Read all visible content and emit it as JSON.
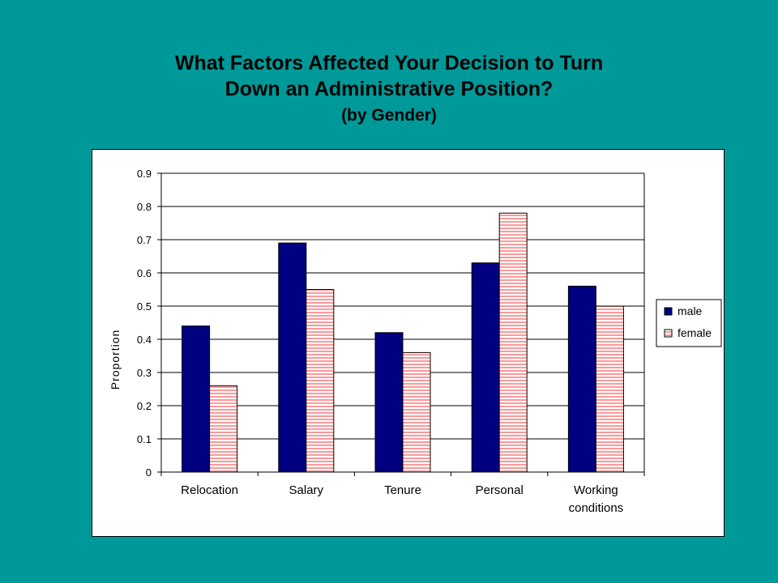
{
  "slide": {
    "title_line1": "What Factors Affected Your Decision to Turn",
    "title_line2": "Down an Administrative Position?",
    "subtitle": "(by Gender)"
  },
  "chart_data": {
    "type": "bar",
    "title": "What Factors Affected Your Decision to Turn Down an Administrative Position?",
    "subtitle": "(by Gender)",
    "xlabel": "",
    "ylabel": "Proportion",
    "categories": [
      [
        "Relocation"
      ],
      [
        "Salary"
      ],
      [
        "Tenure"
      ],
      [
        "Personal"
      ],
      [
        "Working",
        "conditions"
      ]
    ],
    "series": [
      {
        "name": "male",
        "values": [
          0.44,
          0.69,
          0.42,
          0.63,
          0.56
        ],
        "color": "#000080",
        "pattern": "solid"
      },
      {
        "name": "female",
        "values": [
          0.26,
          0.55,
          0.36,
          0.78,
          0.5
        ],
        "color": "#ff9999",
        "pattern": "horizontal-stripes"
      }
    ],
    "ylim": [
      0,
      0.9
    ],
    "yticks": [
      "0",
      "0.1",
      "0.2",
      "0.3",
      "0.4",
      "0.5",
      "0.6",
      "0.7",
      "0.8",
      "0.9"
    ],
    "grid": true,
    "legend": "right"
  }
}
